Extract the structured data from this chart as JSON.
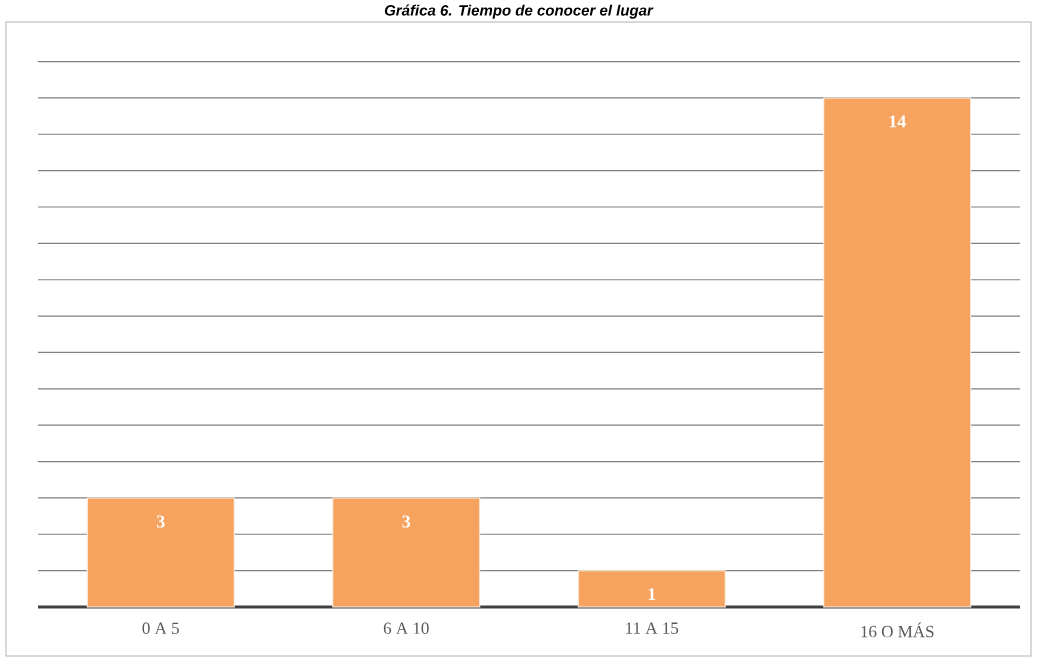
{
  "chart_data": {
    "type": "bar",
    "title": "Gráfica 6. Tiempo de conocer el lugar",
    "categories": [
      "0 A 5",
      "6  A 10",
      "11 A 15",
      "16 O MÁS"
    ],
    "values": [
      3,
      3,
      1,
      14
    ],
    "color": "#f5a35e",
    "tick_labels": "x",
    "grid": "y",
    "data_labels": true
  }
}
